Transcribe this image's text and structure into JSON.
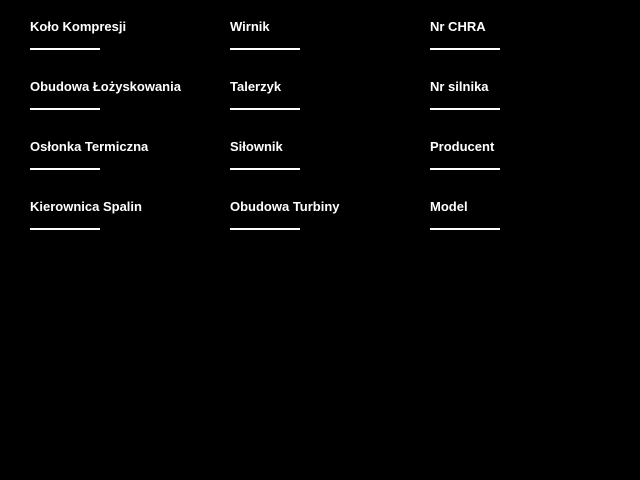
{
  "colors": {
    "background": "#000000",
    "text": "#ffffff",
    "underline": "#ffffff"
  },
  "form": {
    "fields": [
      {
        "label": "Koło Kompresji",
        "value": ""
      },
      {
        "label": "Wirnik",
        "value": ""
      },
      {
        "label": "Nr CHRA",
        "value": ""
      },
      {
        "label": "Obudowa Łożyskowania",
        "value": ""
      },
      {
        "label": "Talerzyk",
        "value": ""
      },
      {
        "label": "Nr silnika",
        "value": ""
      },
      {
        "label": "Osłonka Termiczna",
        "value": ""
      },
      {
        "label": "Siłownik",
        "value": ""
      },
      {
        "label": "Producent",
        "value": ""
      },
      {
        "label": "Kierownica Spalin",
        "value": ""
      },
      {
        "label": "Obudowa Turbiny",
        "value": ""
      },
      {
        "label": "Model",
        "value": ""
      }
    ]
  }
}
